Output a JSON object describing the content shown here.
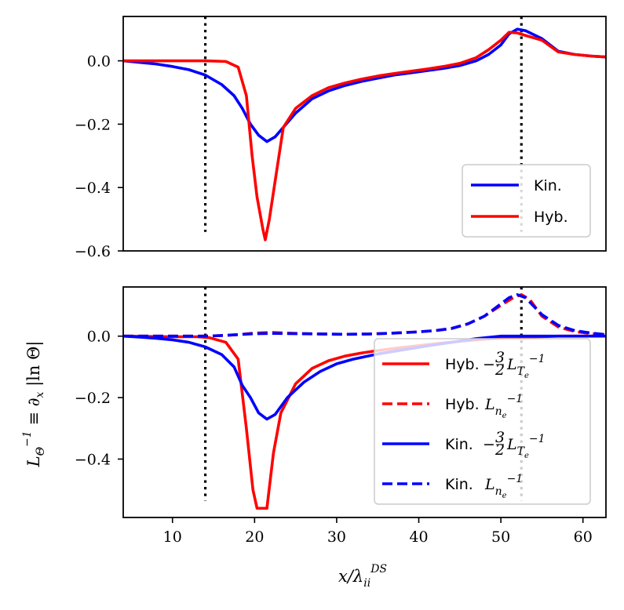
{
  "chart_data": [
    {
      "type": "line",
      "panel": "top",
      "xlim": [
        4,
        62.8
      ],
      "ylim": [
        -0.6,
        0.14
      ],
      "yticks": [
        0.0,
        -0.2,
        -0.4,
        -0.6
      ],
      "ytick_labels": [
        "0.0",
        "−0.2",
        "−0.4",
        "−0.6"
      ],
      "vlines_x": [
        14,
        52.5
      ],
      "vline_ymin": -0.54,
      "legend": {
        "location": "lower-right",
        "entries": [
          "Kin.",
          "Hyb."
        ]
      },
      "series": [
        {
          "name": "Kin.",
          "color": "#0000ff",
          "style": "solid",
          "x": [
            4,
            6,
            8,
            10,
            12,
            14,
            16,
            17.5,
            18.5,
            19.5,
            20.5,
            21.5,
            22.5,
            23.5,
            25,
            27,
            29,
            31,
            33,
            35,
            37,
            39,
            41,
            43,
            45,
            47,
            48.5,
            50,
            51,
            52,
            53,
            55,
            57,
            59,
            61,
            62.8
          ],
          "y": [
            0,
            -0.005,
            -0.01,
            -0.018,
            -0.028,
            -0.045,
            -0.075,
            -0.11,
            -0.15,
            -0.2,
            -0.235,
            -0.255,
            -0.24,
            -0.21,
            -0.165,
            -0.12,
            -0.095,
            -0.078,
            -0.065,
            -0.055,
            -0.045,
            -0.038,
            -0.031,
            -0.024,
            -0.015,
            0.0,
            0.02,
            0.05,
            0.085,
            0.1,
            0.095,
            0.07,
            0.03,
            0.02,
            0.015,
            0.012
          ]
        },
        {
          "name": "Hyb.",
          "color": "#ff0000",
          "style": "solid",
          "x": [
            4,
            10,
            14,
            16.5,
            18,
            19,
            19.7,
            20.3,
            21,
            21.3,
            21.8,
            22.5,
            23.5,
            25,
            27,
            29,
            31,
            33,
            35,
            37,
            39,
            41,
            43,
            45,
            47,
            48.5,
            50,
            51,
            52,
            53,
            55,
            57,
            59,
            61,
            62.8
          ],
          "y": [
            0.0,
            0.0,
            0.0,
            -0.002,
            -0.02,
            -0.11,
            -0.3,
            -0.43,
            -0.53,
            -0.565,
            -0.5,
            -0.38,
            -0.21,
            -0.15,
            -0.11,
            -0.085,
            -0.07,
            -0.058,
            -0.048,
            -0.04,
            -0.033,
            -0.026,
            -0.018,
            -0.008,
            0.01,
            0.035,
            0.065,
            0.09,
            0.088,
            0.08,
            0.065,
            0.028,
            0.02,
            0.015,
            0.012
          ]
        }
      ]
    },
    {
      "type": "line",
      "panel": "bottom",
      "xlim": [
        4,
        62.8
      ],
      "ylim": [
        -0.59,
        0.16
      ],
      "xticks": [
        10,
        20,
        30,
        40,
        50,
        60
      ],
      "xtick_labels": [
        "10",
        "20",
        "30",
        "40",
        "50",
        "60"
      ],
      "yticks": [
        0.0,
        -0.2,
        -0.4
      ],
      "ytick_labels": [
        "0.0",
        "−0.2",
        "−0.4"
      ],
      "vlines_x": [
        14,
        52.5
      ],
      "vline_ymin": -0.535,
      "xlabel": "x/λ",
      "xlabel_sub": "ii",
      "xlabel_sup": "DS",
      "ylabel": "L",
      "ylabel_sub": "Θ",
      "ylabel_sup": "−1",
      "ylabel_rest": " ≡ ∂",
      "ylabel_sub2": "x",
      "ylabel_tail": " |ln Θ|",
      "legend": {
        "location": "lower-right",
        "entries": [
          {
            "prefix": "Hyb.",
            "term": "L",
            "sub": "T",
            "subsub": "e",
            "sup": "−1",
            "coef_sign": "−",
            "coef_num": "3",
            "coef_den": "2"
          },
          {
            "prefix": "Hyb.",
            "term": "L",
            "sub": "n",
            "subsub": "e",
            "sup": "−1"
          },
          {
            "prefix": "Kin.",
            "term": "L",
            "sub": "T",
            "subsub": "e",
            "sup": "−1",
            "coef_sign": "−",
            "coef_num": "3",
            "coef_den": "2"
          },
          {
            "prefix": "Kin.",
            "term": "L",
            "sub": "n",
            "subsub": "e",
            "sup": "−1"
          }
        ]
      },
      "series": [
        {
          "name": "Hyb. -3/2 L_Te^-1",
          "color": "#ff0000",
          "style": "solid",
          "x": [
            4,
            10,
            13,
            14.5,
            16.5,
            18,
            19,
            19.8,
            20.3,
            21,
            21.5,
            22.3,
            23.2,
            25,
            27,
            29,
            31,
            33,
            35,
            37,
            39,
            41,
            43,
            45,
            47,
            49,
            51,
            53,
            55,
            57,
            59,
            61,
            62.8
          ],
          "y": [
            0.0,
            -0.002,
            -0.002,
            -0.005,
            -0.02,
            -0.075,
            -0.3,
            -0.5,
            -0.56,
            -0.56,
            -0.56,
            -0.38,
            -0.25,
            -0.155,
            -0.105,
            -0.08,
            -0.065,
            -0.055,
            -0.047,
            -0.04,
            -0.034,
            -0.028,
            -0.022,
            -0.017,
            -0.012,
            -0.008,
            -0.005,
            -0.003,
            -0.002,
            0.0,
            0.0,
            0.0,
            0.0
          ]
        },
        {
          "name": "Hyb. L_ne^-1",
          "color": "#ff0000",
          "style": "dashed",
          "x": [
            4,
            10,
            14,
            16,
            18,
            20,
            22,
            25,
            28,
            31,
            34,
            37,
            40,
            42,
            44,
            46,
            48,
            50,
            51.5,
            52.5,
            53.5,
            55,
            57,
            59,
            61,
            62.8
          ],
          "y": [
            0.0,
            0.0,
            0.0,
            0.002,
            0.005,
            0.01,
            0.012,
            0.009,
            0.007,
            0.006,
            0.007,
            0.01,
            0.014,
            0.018,
            0.025,
            0.04,
            0.065,
            0.1,
            0.125,
            0.135,
            0.12,
            0.065,
            0.03,
            0.015,
            0.008,
            0.005
          ]
        },
        {
          "name": "Kin. -3/2 L_Te^-1",
          "color": "#0000ff",
          "style": "solid",
          "x": [
            4,
            6,
            8,
            10,
            12,
            14,
            16,
            17.5,
            18.5,
            19.5,
            20.5,
            21.5,
            22.5,
            24,
            26,
            28,
            30,
            32,
            35,
            38,
            41,
            44,
            47,
            50,
            52,
            55,
            58,
            62.8
          ],
          "y": [
            0.0,
            -0.003,
            -0.007,
            -0.012,
            -0.02,
            -0.035,
            -0.06,
            -0.1,
            -0.16,
            -0.2,
            -0.25,
            -0.27,
            -0.255,
            -0.2,
            -0.15,
            -0.115,
            -0.09,
            -0.075,
            -0.058,
            -0.045,
            -0.032,
            -0.02,
            -0.008,
            0.0,
            0.0,
            0.0,
            0.0,
            0.0
          ]
        },
        {
          "name": "Kin. L_ne^-1",
          "color": "#0000ff",
          "style": "dashed",
          "x": [
            4,
            10,
            14,
            16,
            18,
            20,
            22,
            25,
            28,
            31,
            34,
            37,
            40,
            42,
            44,
            46,
            48,
            50,
            51,
            52,
            53,
            55,
            57,
            59,
            61,
            62.8
          ],
          "y": [
            0.0,
            0.0,
            0.0,
            0.002,
            0.005,
            0.008,
            0.009,
            0.008,
            0.007,
            0.006,
            0.007,
            0.01,
            0.014,
            0.018,
            0.025,
            0.04,
            0.065,
            0.105,
            0.125,
            0.135,
            0.125,
            0.07,
            0.035,
            0.018,
            0.01,
            0.005
          ]
        }
      ]
    }
  ]
}
